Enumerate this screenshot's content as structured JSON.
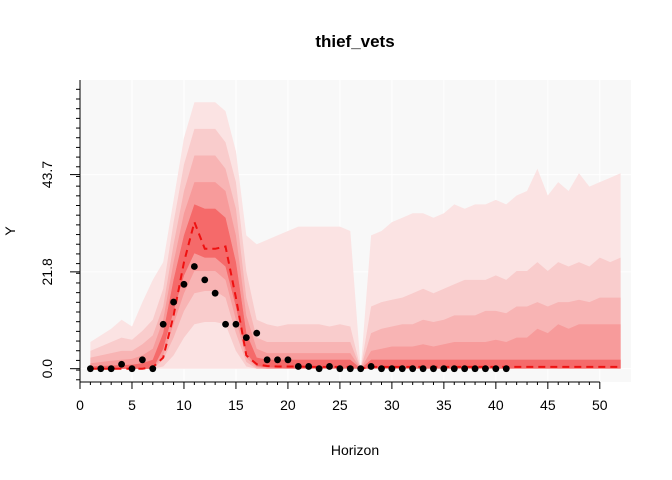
{
  "chart_data": {
    "type": "line",
    "title": "thief_vets",
    "xlabel": "Horizon",
    "ylabel": "Y",
    "xlim": [
      0,
      53
    ],
    "ylim": [
      -3,
      65
    ],
    "x_ticks": [
      0,
      5,
      10,
      15,
      20,
      25,
      30,
      35,
      40,
      45,
      50
    ],
    "y_ticks": [
      0.0,
      21.8,
      43.7
    ],
    "y_tick_labels": [
      "0.0",
      "21.8",
      "43.7"
    ],
    "grid": true,
    "background_color": "#f8f8f8",
    "grid_color": "#ffffff",
    "band_colors": [
      "#fbe3e3",
      "#f9cccc",
      "#f8b4b4",
      "#f79b9b",
      "#f68282",
      "#f56a6a"
    ],
    "median_color": "#ee1111",
    "point_color": "#000000",
    "x": [
      1,
      2,
      3,
      4,
      5,
      6,
      7,
      8,
      9,
      10,
      11,
      12,
      13,
      14,
      15,
      16,
      17,
      18,
      19,
      20,
      21,
      22,
      23,
      24,
      25,
      26,
      27,
      28,
      29,
      30,
      31,
      32,
      33,
      34,
      35,
      36,
      37,
      38,
      39,
      40,
      41,
      42,
      43,
      44,
      45,
      46,
      47,
      48,
      49,
      50,
      51,
      52
    ],
    "quantiles": {
      "q01": [
        0,
        0,
        0,
        0,
        0,
        0,
        0,
        0,
        0,
        0,
        0,
        0,
        0,
        0,
        0,
        0,
        0,
        0,
        0,
        0,
        0,
        0,
        0,
        0,
        0,
        0,
        0,
        0,
        0,
        0,
        0,
        0,
        0,
        0,
        0,
        0,
        0,
        0,
        0,
        0,
        0,
        0,
        0,
        0,
        0,
        0,
        0,
        0,
        0,
        0,
        0,
        0
      ],
      "q10": [
        0,
        0,
        0,
        0,
        0,
        0,
        0,
        0.5,
        3,
        7,
        10,
        10.5,
        10.5,
        10,
        4,
        0.5,
        0,
        0,
        0,
        0,
        0,
        0,
        0,
        0,
        0,
        0,
        0,
        0,
        0,
        0,
        0,
        0,
        0,
        0,
        0,
        0,
        0,
        0,
        0,
        0,
        0,
        0,
        0,
        0,
        0,
        0,
        0,
        0,
        0,
        0,
        0,
        0
      ],
      "q20": [
        0,
        0,
        0,
        0,
        0,
        0,
        0,
        2,
        7,
        13,
        17,
        17.5,
        17.5,
        16,
        8,
        1.5,
        0,
        0,
        0,
        0,
        0,
        0,
        0,
        0,
        0,
        0,
        0,
        0,
        0,
        0,
        0,
        0,
        0,
        0,
        0,
        0,
        0,
        0,
        0,
        0,
        0,
        0,
        0,
        0,
        0,
        0,
        0,
        0,
        0,
        0,
        0,
        0
      ],
      "q30": [
        0,
        0,
        0,
        0,
        0,
        0,
        0,
        3,
        10,
        17,
        22,
        22,
        22,
        20,
        11,
        2.5,
        0.3,
        0,
        0,
        0,
        0,
        0,
        0,
        0,
        0,
        0,
        0,
        0,
        0,
        0,
        0,
        0,
        0,
        0,
        0,
        0,
        0,
        0,
        0,
        0,
        0,
        0,
        0,
        0,
        0,
        0,
        0,
        0,
        0,
        0,
        0,
        0
      ],
      "q40": [
        0,
        0,
        0,
        0,
        0,
        0,
        0,
        4.5,
        13,
        21,
        26,
        25,
        25,
        23,
        14,
        3.5,
        0.6,
        0.3,
        0.2,
        0.1,
        0.1,
        0.1,
        0.1,
        0.1,
        0.1,
        0.1,
        0,
        0.1,
        0.1,
        0.1,
        0.1,
        0.1,
        0.1,
        0.1,
        0.1,
        0.1,
        0.1,
        0.1,
        0.1,
        0.1,
        0.1,
        0.1,
        0.1,
        0.1,
        0.1,
        0.1,
        0.1,
        0.1,
        0.1,
        0.1,
        0.1,
        0.1
      ],
      "q50": [
        0,
        0,
        0,
        0,
        0,
        0,
        0.2,
        5.5,
        16,
        25,
        32,
        28,
        27.5,
        27.5,
        18,
        5,
        1,
        0.7,
        0.6,
        0.6,
        0.6,
        0.5,
        0.5,
        0.5,
        0.5,
        0.5,
        0,
        0.5,
        0.5,
        0.5,
        0.5,
        0.5,
        0.5,
        0.5,
        0.5,
        0.5,
        0.5,
        0.5,
        0.5,
        0.5,
        0.5,
        0.5,
        0.5,
        0.5,
        0.5,
        0.5,
        0.5,
        0.5,
        0.5,
        0.5,
        0.5,
        0.5
      ],
      "q60": [
        0.5,
        0.6,
        0.7,
        0.8,
        0.9,
        1.2,
        2,
        8,
        20,
        30,
        37,
        36,
        36,
        34,
        24,
        8,
        2.5,
        2,
        2,
        2,
        2,
        2,
        2,
        2,
        2,
        2,
        0,
        2,
        2,
        2,
        2,
        2,
        2,
        2,
        2,
        2,
        2,
        2,
        2,
        2,
        2,
        2,
        2,
        2,
        2,
        2,
        2,
        2,
        2,
        2,
        2,
        2
      ],
      "q70": [
        1.2,
        1.5,
        1.8,
        2,
        2.2,
        3,
        4.5,
        11,
        24,
        35,
        42,
        42,
        42,
        40,
        30,
        12,
        4.5,
        3.5,
        3.5,
        3.5,
        3.5,
        3.5,
        3.5,
        3.5,
        3.5,
        3.5,
        0,
        4,
        4.5,
        5,
        5,
        5,
        5.5,
        5,
        5.5,
        6,
        6,
        6,
        6,
        6.5,
        6,
        7,
        7,
        9,
        8,
        10,
        9,
        10,
        10,
        10,
        10,
        10
      ],
      "q80": [
        2.5,
        3,
        3.5,
        4,
        4,
        5.5,
        7.5,
        14,
        28,
        40,
        48,
        48,
        48,
        45,
        36,
        16,
        7,
        6,
        6,
        6,
        6,
        6,
        6,
        6,
        6,
        6,
        0,
        8,
        9,
        9.5,
        10,
        10,
        11,
        10.5,
        11,
        12,
        12,
        12,
        13,
        13,
        12.5,
        14,
        14,
        15,
        14,
        15,
        15,
        15.5,
        15,
        16,
        16,
        16
      ],
      "q90": [
        4,
        5,
        6,
        7,
        6.5,
        8.5,
        11,
        18,
        33,
        46,
        54,
        54,
        54,
        51,
        42,
        22,
        11,
        10,
        9.5,
        10,
        10,
        10,
        10,
        9.5,
        10,
        9.5,
        0,
        14,
        15,
        15.5,
        16,
        17,
        18,
        17,
        18,
        19,
        20,
        20,
        20,
        21,
        20,
        22,
        22,
        24,
        22,
        24,
        23,
        24,
        23,
        25,
        24,
        25
      ],
      "q99": [
        6,
        7.5,
        9,
        11,
        9.5,
        15,
        20,
        24,
        38,
        52,
        60,
        60,
        60,
        58,
        49,
        30,
        28,
        29,
        30,
        31,
        32,
        32,
        32,
        32,
        32,
        31,
        0,
        30,
        31,
        33,
        34,
        35,
        35,
        34,
        35,
        37,
        36,
        37,
        37,
        38,
        37,
        39,
        40,
        45,
        39,
        42,
        40,
        44,
        41,
        42,
        43,
        44
      ]
    },
    "median": [
      0,
      0,
      0,
      0,
      0,
      0,
      0.3,
      2.5,
      12,
      24,
      33,
      27,
      27,
      27.5,
      16,
      3,
      1,
      0.6,
      0.5,
      0.5,
      0.5,
      0.4,
      0.4,
      0.4,
      0.4,
      0.4,
      0,
      0.4,
      0.4,
      0.4,
      0.4,
      0.4,
      0.4,
      0.4,
      0.4,
      0.4,
      0.4,
      0.4,
      0.4,
      0.4,
      0.4,
      0.4,
      0.4,
      0.4,
      0.4,
      0.4,
      0.4,
      0.4,
      0.4,
      0.4,
      0.4,
      0.4
    ],
    "observed_x": [
      1,
      2,
      3,
      4,
      5,
      6,
      7,
      8,
      9,
      10,
      11,
      12,
      13,
      14,
      15,
      16,
      17,
      18,
      19,
      20,
      21,
      22,
      23,
      24,
      25,
      26,
      27,
      28,
      29,
      30,
      31,
      32,
      33,
      34,
      35,
      36,
      37,
      38,
      39,
      40,
      41
    ],
    "observed_y": [
      0,
      0,
      0,
      1,
      0,
      2,
      0,
      10,
      15,
      19,
      23,
      20,
      17,
      10,
      10,
      7,
      8,
      2,
      2,
      2,
      0.5,
      0.5,
      0,
      0.5,
      0,
      0,
      0,
      0.5,
      0,
      0,
      0,
      0,
      0,
      0,
      0,
      0,
      0,
      0,
      0,
      0,
      0
    ]
  }
}
